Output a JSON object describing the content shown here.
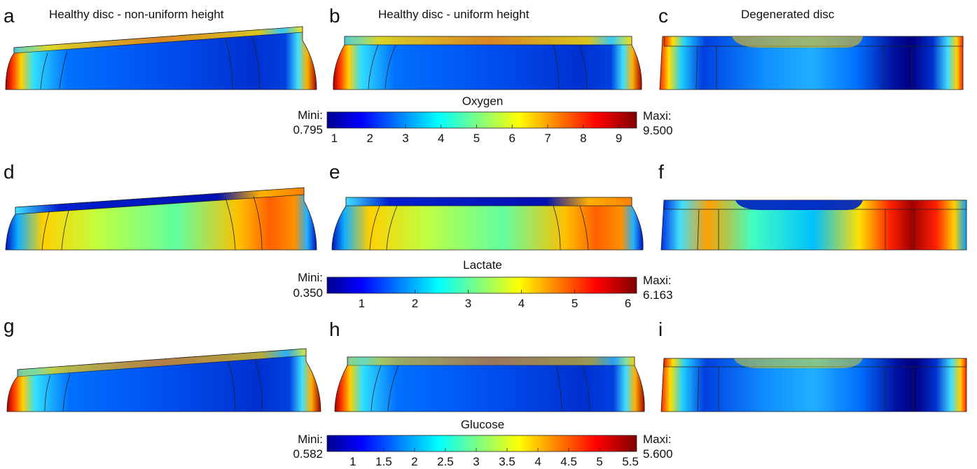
{
  "panel_letters": [
    "a",
    "b",
    "c",
    "d",
    "e",
    "f",
    "g",
    "h",
    "i"
  ],
  "column_titles": [
    "Healthy disc - non-uniform height",
    "Healthy disc - uniform height",
    "Degenerated disc"
  ],
  "colorbars": [
    {
      "title": "Oxygen",
      "min_label": "Mini:",
      "min_value": "0.795",
      "max_label": "Maxi:",
      "max_value": "9.500",
      "min": 0.795,
      "max": 9.5,
      "ticks": [
        "1",
        "2",
        "3",
        "4",
        "5",
        "6",
        "7",
        "8",
        "9"
      ]
    },
    {
      "title": "Lactate",
      "min_label": "Mini:",
      "min_value": "0.350",
      "max_label": "Maxi:",
      "max_value": "6.163",
      "min": 0.35,
      "max": 6.163,
      "ticks": [
        "1",
        "2",
        "3",
        "4",
        "5",
        "6"
      ]
    },
    {
      "title": "Glucose",
      "min_label": "Mini:",
      "min_value": "0.582",
      "max_label": "Maxi:",
      "max_value": "5.600",
      "min": 0.582,
      "max": 5.6,
      "ticks": [
        "1",
        "1.5",
        "2",
        "2.5",
        "3",
        "3.5",
        "4",
        "4.5",
        "5",
        "5.5"
      ]
    }
  ],
  "colormap": "jet",
  "colors": {
    "dark_blue": "#00008f",
    "blue": "#0000ff",
    "cyan": "#00ffff",
    "yellow": "#ffff00",
    "red": "#ff0000",
    "dark_red": "#800000"
  }
}
